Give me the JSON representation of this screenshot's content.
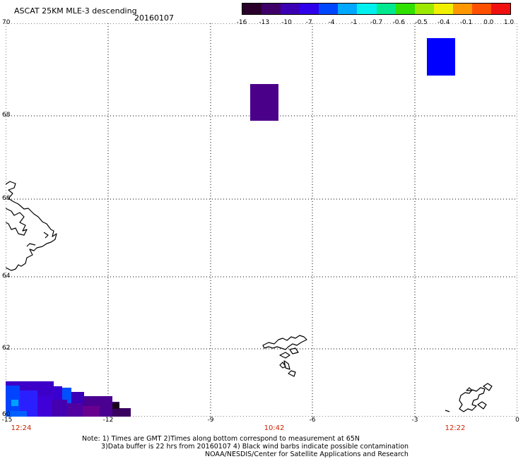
{
  "header": {
    "title": "ASCAT 25KM MLE-3 descending",
    "date": "20160107"
  },
  "colorbar": {
    "ticks": [
      "-16",
      "-13",
      "-10",
      "-7",
      "-4",
      "-1",
      "-0.7",
      "-0.6",
      "-0.5",
      "-0.4",
      "-0.1",
      "0.0",
      "1.0"
    ],
    "colors": [
      "#2a002a",
      "#3f0068",
      "#3c00b4",
      "#2f00ea",
      "#0046ff",
      "#00a8ff",
      "#00f0f0",
      "#00e890",
      "#30e000",
      "#9ce800",
      "#f0f000",
      "#ff9800",
      "#ff5000",
      "#f01010"
    ]
  },
  "axes": {
    "y_labels": [
      "70",
      "68",
      "66",
      "64",
      "62",
      "60"
    ],
    "x_labels": [
      "-15",
      "-12",
      "-9",
      "-6",
      "-3",
      "0"
    ]
  },
  "pass_times": [
    "12:24",
    "10:42",
    "12:22"
  ],
  "notes": {
    "line1": "Note: 1) Times are GMT 2)Times along bottom correspond to measurement at 65N",
    "line2": "3)Data buffer is 22 hrs from 20160107 4) Black wind barbs indicate possible contamination",
    "credit": "NOAA/NESDIS/Center for Satellite Applications and Research"
  }
}
